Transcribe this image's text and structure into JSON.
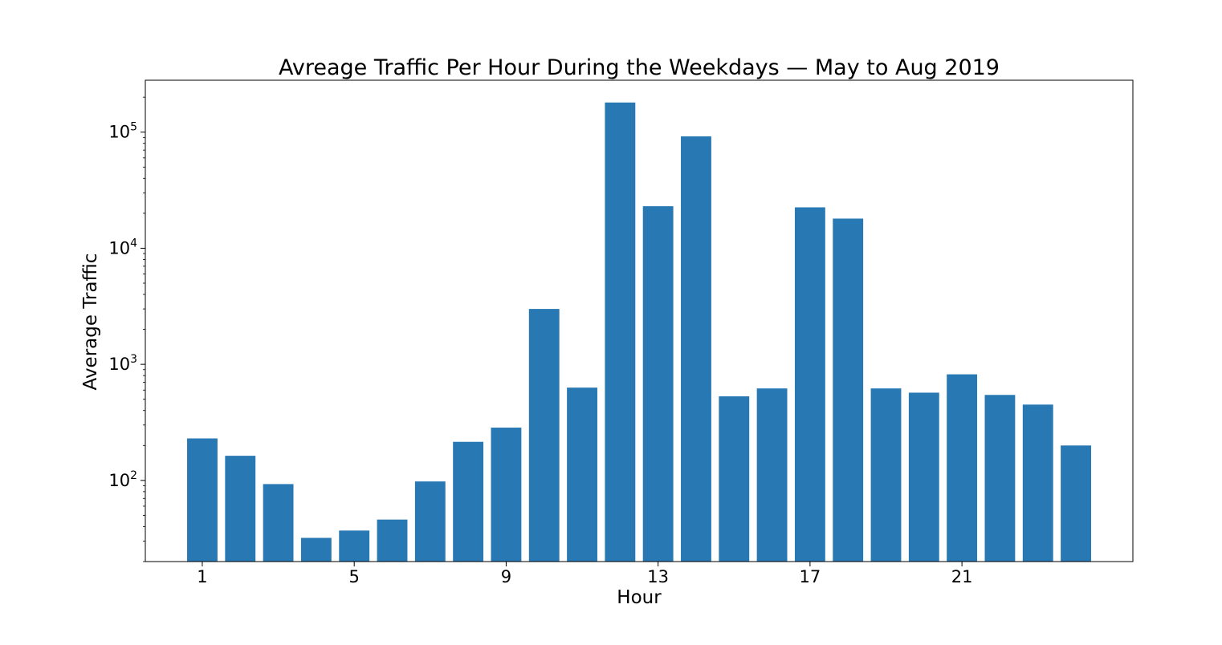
{
  "chart_data": {
    "type": "bar",
    "title": "Avreage Traffic Per Hour During the Weekdays — May to Aug 2019",
    "xlabel": "Hour",
    "ylabel": "Average Traffic",
    "yscale": "log",
    "ylim": [
      20,
      280000
    ],
    "xlim": [
      -0.5,
      25.5
    ],
    "grid": false,
    "legend": "none",
    "bar_color": "#2878b4",
    "x_ticks": [
      1,
      5,
      9,
      13,
      17,
      21
    ],
    "y_ticks": [
      {
        "value": 100,
        "base": "10",
        "exp": "2"
      },
      {
        "value": 1000,
        "base": "10",
        "exp": "3"
      },
      {
        "value": 10000,
        "base": "10",
        "exp": "4"
      },
      {
        "value": 100000,
        "base": "10",
        "exp": "5"
      }
    ],
    "x": [
      1,
      2,
      3,
      4,
      5,
      6,
      7,
      8,
      9,
      10,
      11,
      12,
      13,
      14,
      15,
      16,
      17,
      18,
      19,
      20,
      21,
      22,
      23,
      24
    ],
    "values": [
      230,
      163,
      93,
      32,
      37,
      46,
      98,
      215,
      285,
      3000,
      630,
      180000,
      23000,
      92000,
      530,
      620,
      22500,
      18000,
      620,
      570,
      820,
      545,
      450,
      200
    ]
  }
}
